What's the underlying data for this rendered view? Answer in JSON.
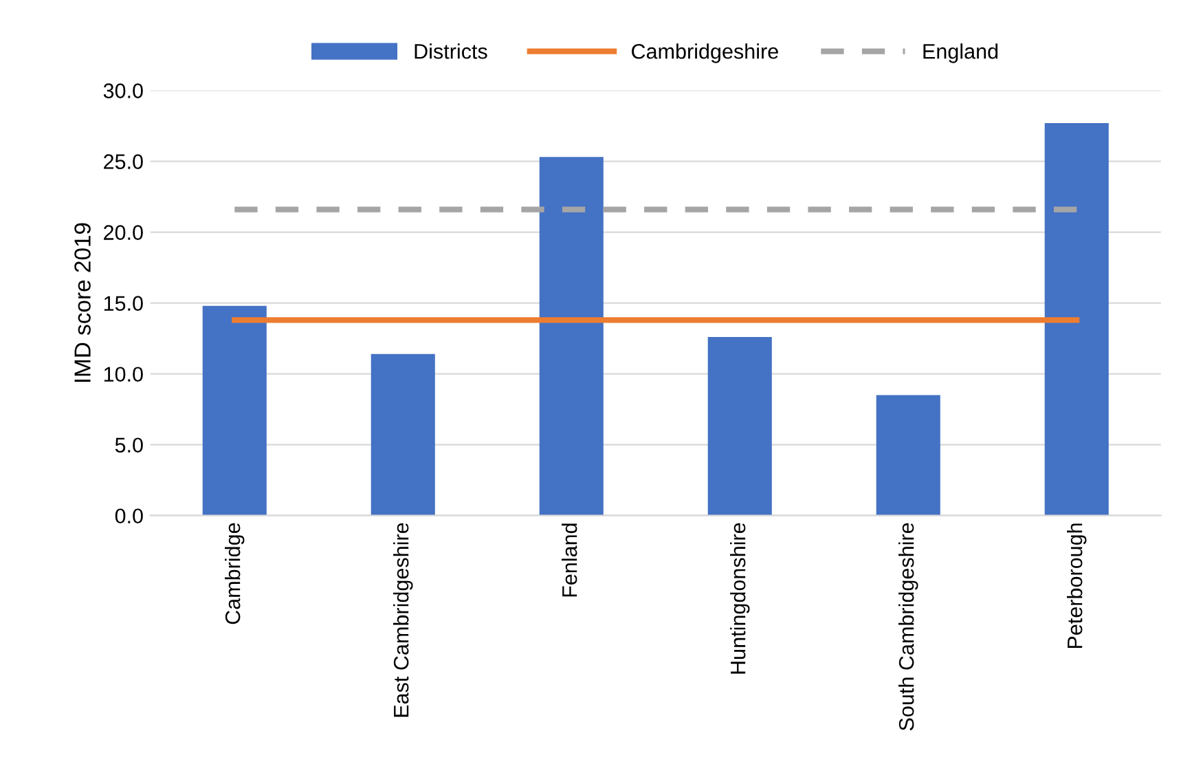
{
  "chart_data": {
    "type": "bar",
    "ylabel": "IMD score 2019",
    "categories": [
      "Cambridge",
      "East Cambridgeshire",
      "Fenland",
      "Huntingdonshire",
      "South Cambridgeshire",
      "Peterborough"
    ],
    "series": [
      {
        "name": "Districts",
        "color": "#4472c4",
        "values": [
          14.8,
          11.4,
          25.3,
          12.6,
          8.5,
          27.7
        ]
      },
      {
        "name": "Cambridgeshire",
        "type": "line",
        "color": "#ed7d31",
        "line_style": "solid",
        "values": [
          13.8,
          13.8,
          13.8,
          13.8,
          13.8,
          13.8
        ]
      },
      {
        "name": "England",
        "type": "line",
        "color": "#a5a5a5",
        "line_style": "dashed",
        "values": [
          21.6,
          21.6,
          21.6,
          21.6,
          21.6,
          21.6
        ]
      }
    ],
    "ylim": [
      0,
      30
    ],
    "yticks": [
      {
        "value": 0,
        "label": "0.0"
      },
      {
        "value": 5,
        "label": "5.0"
      },
      {
        "value": 10,
        "label": "10.0"
      },
      {
        "value": 15,
        "label": "15.0"
      },
      {
        "value": 20,
        "label": "20.0"
      },
      {
        "value": 25,
        "label": "25.0"
      },
      {
        "value": 30,
        "label": "30.0"
      }
    ],
    "grid": "y",
    "legend": "top"
  }
}
